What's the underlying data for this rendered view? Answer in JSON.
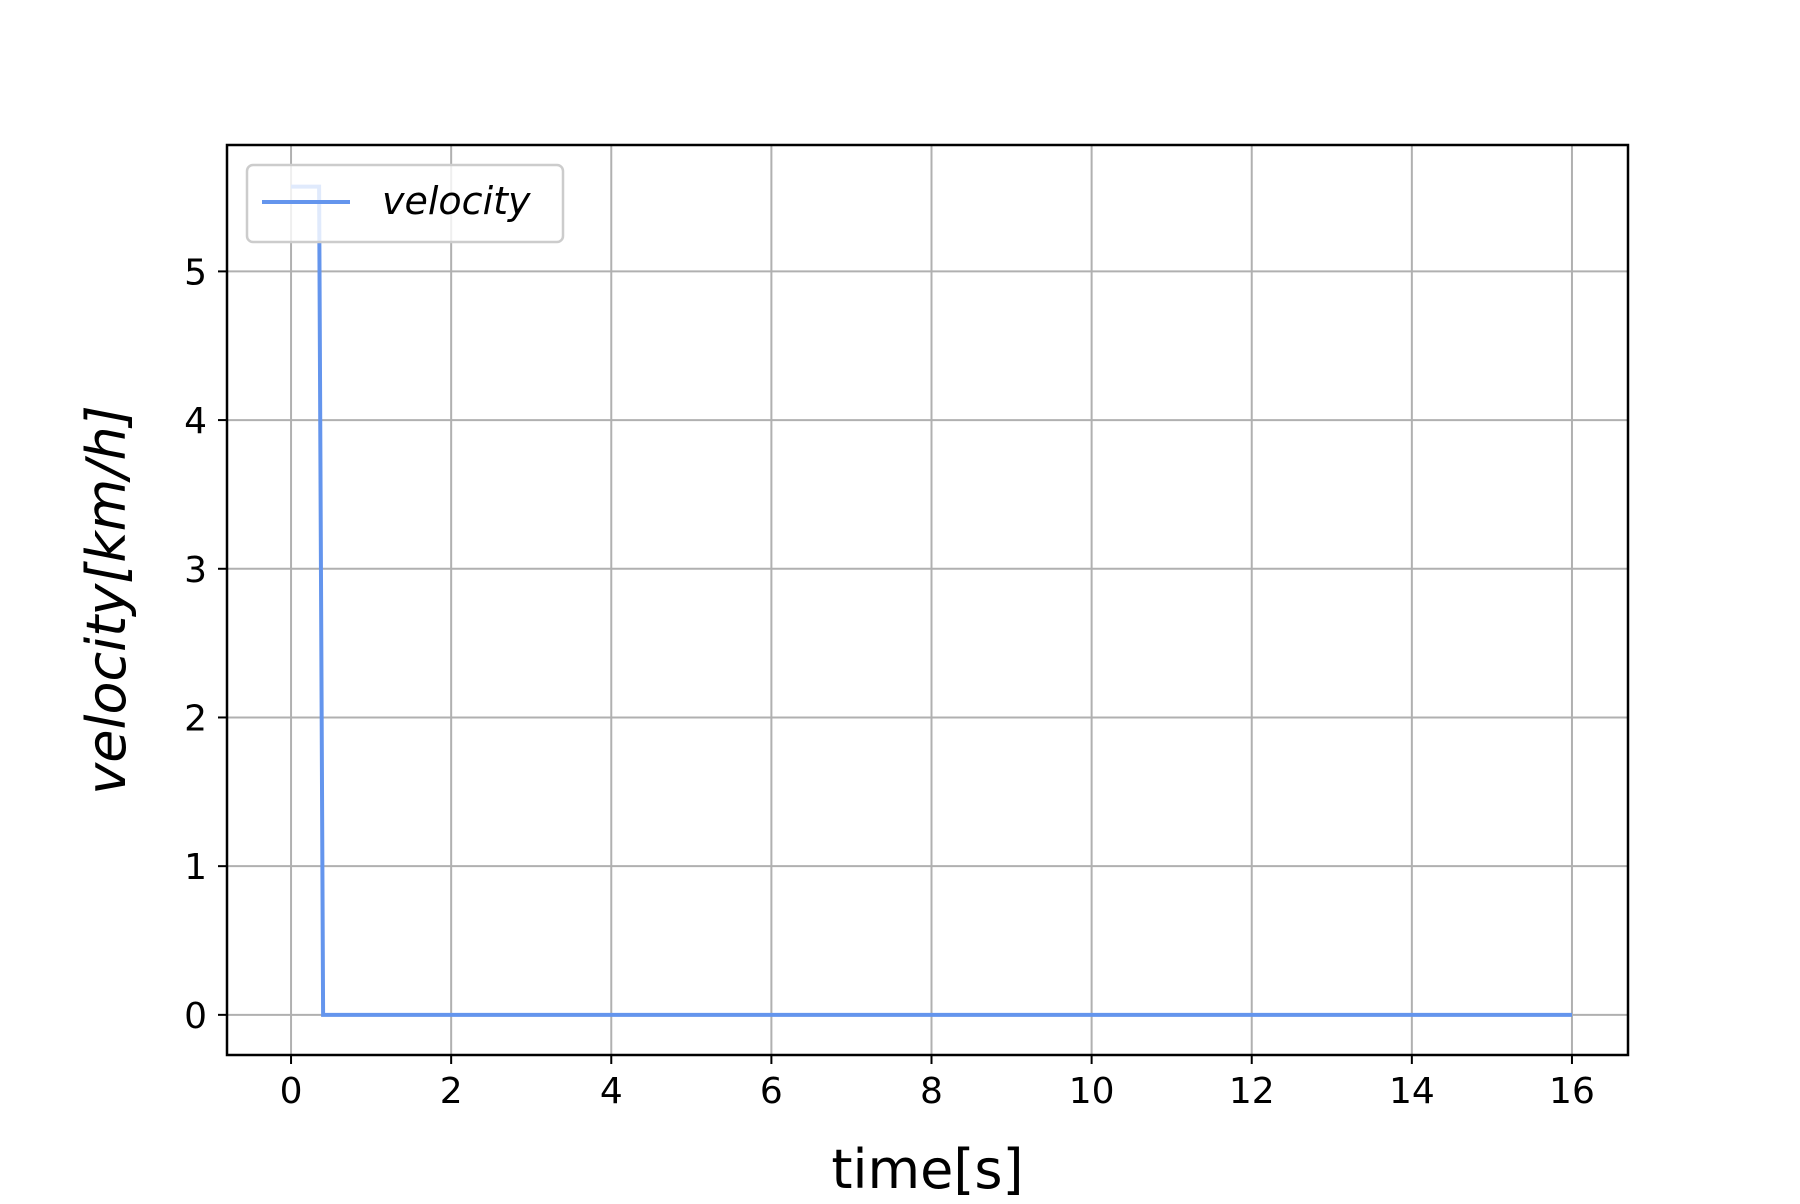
{
  "chart_data": {
    "type": "line",
    "title": "",
    "xlabel": "time[s]",
    "ylabel": "velocity[km/h]",
    "xlim": [
      -0.8,
      16.7
    ],
    "ylim": [
      -0.27,
      5.85
    ],
    "xticks": [
      0,
      2,
      4,
      6,
      8,
      10,
      12,
      14,
      16
    ],
    "yticks": [
      0,
      1,
      2,
      3,
      4,
      5
    ],
    "grid": true,
    "legend_position": "top-left",
    "series": [
      {
        "name": "velocity",
        "color": "#6495ED",
        "x": [
          0.0,
          0.35,
          0.4,
          16.0
        ],
        "y": [
          5.57,
          5.57,
          0.0,
          0.0
        ]
      }
    ]
  }
}
